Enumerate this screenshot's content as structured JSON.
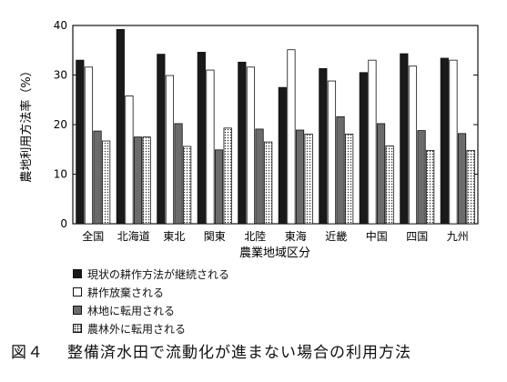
{
  "chart_data": {
    "type": "bar",
    "title": "",
    "ylabel": "農地利用方法率（%）",
    "xlabel": "農業地域区分",
    "ylim": [
      0,
      40
    ],
    "yticks": [
      0,
      10,
      20,
      30,
      40
    ],
    "categories": [
      "全国",
      "北海道",
      "東北",
      "関東",
      "北陸",
      "東海",
      "近畿",
      "中国",
      "四国",
      "九州"
    ],
    "series": [
      {
        "name": "現状の耕作方法が継続される",
        "values": [
          33.0,
          39.2,
          34.2,
          34.6,
          32.6,
          27.5,
          31.3,
          30.5,
          34.3,
          33.4
        ]
      },
      {
        "name": "耕作放棄される",
        "values": [
          31.6,
          25.8,
          29.9,
          31.0,
          31.6,
          35.1,
          28.8,
          33.0,
          31.8,
          33.0
        ]
      },
      {
        "name": "林地に転用される",
        "values": [
          18.7,
          17.5,
          20.2,
          14.9,
          19.1,
          18.9,
          21.6,
          20.2,
          18.8,
          18.2
        ]
      },
      {
        "name": "農林外に転用される",
        "values": [
          16.7,
          17.5,
          15.6,
          19.3,
          16.5,
          18.1,
          18.1,
          15.7,
          14.8,
          14.8
        ]
      }
    ],
    "legend_position": "bottom-left",
    "grid": false
  },
  "caption": {
    "number": "図４",
    "text": "整備済水田で流動化が進まない場合の利用方法"
  },
  "colors": {
    "series_0": "#1a1a1a",
    "series_1": "#ffffff",
    "series_2": "#6b6b6b",
    "series_3": "dotted"
  }
}
